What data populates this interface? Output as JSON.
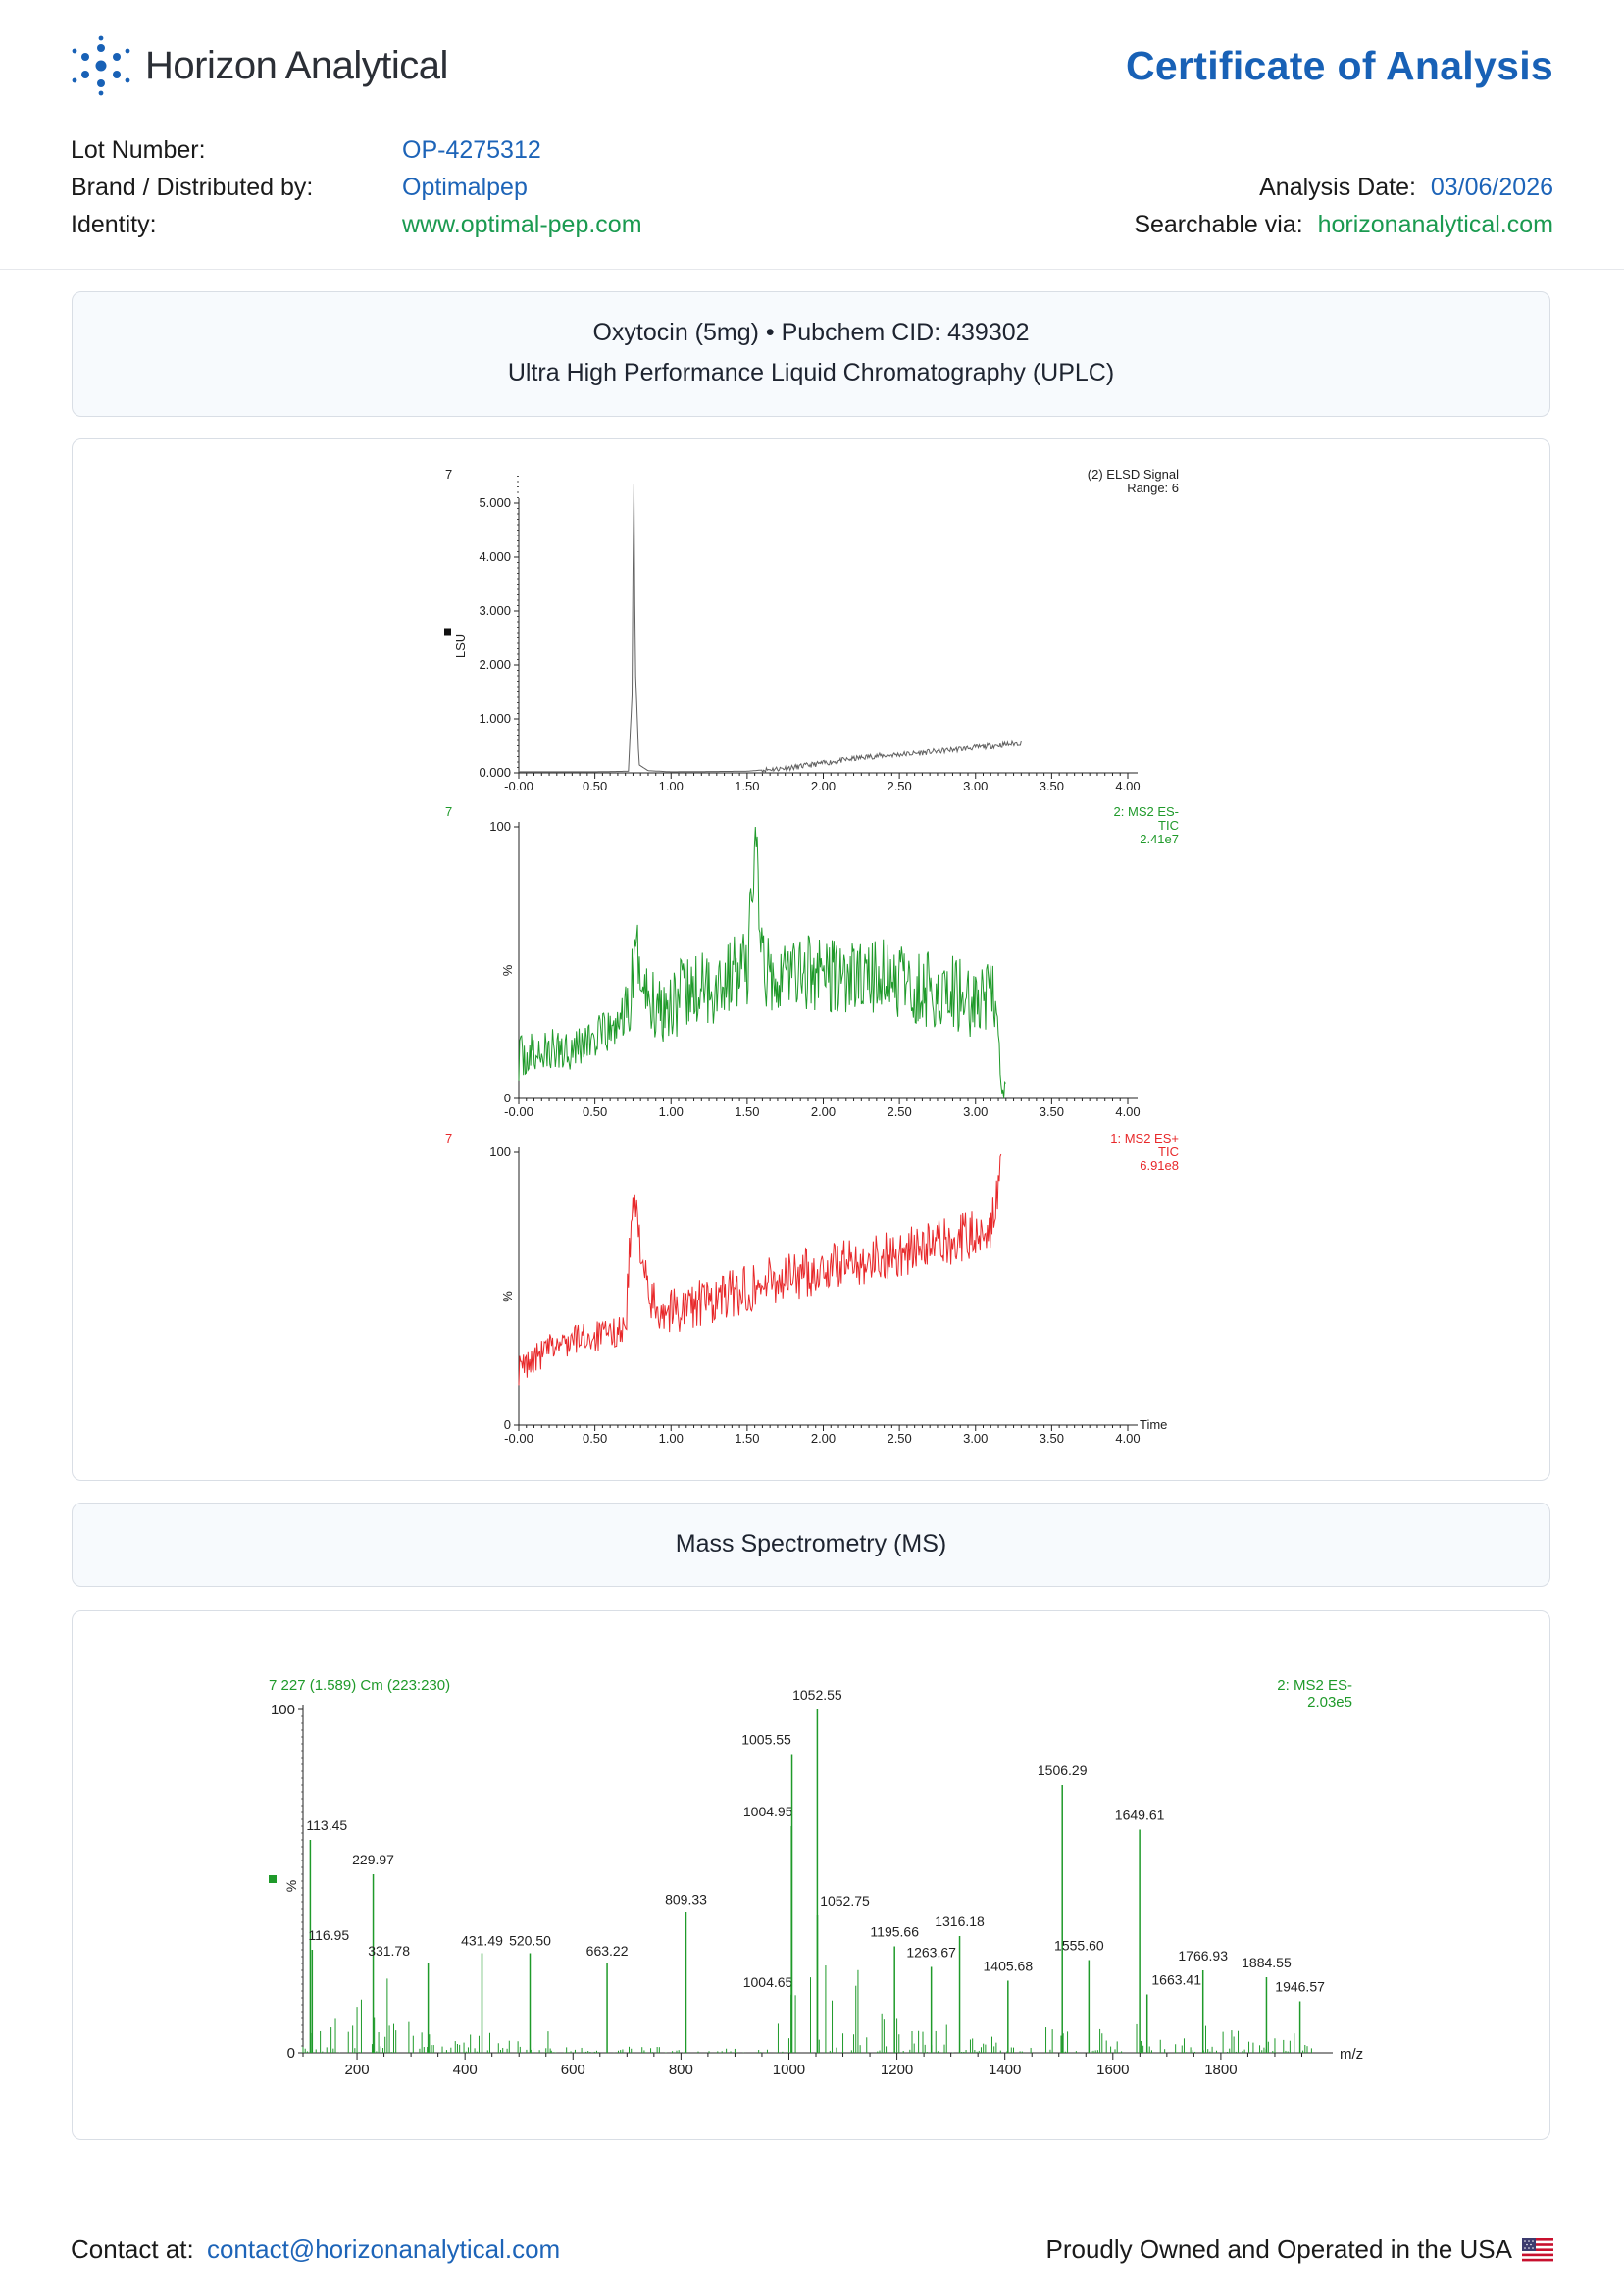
{
  "header": {
    "brand_name": "Horizon Analytical",
    "doc_title": "Certificate of Analysis",
    "lot_label": "Lot Number:",
    "lot_value": "OP-4275312",
    "brand_label": "Brand / Distributed by:",
    "brand_value": "Optimalpep",
    "identity_label": "Identity:",
    "identity_value": "www.optimal-pep.com",
    "analysis_date_label": "Analysis Date:",
    "analysis_date_value": "03/06/2026",
    "searchable_label": "Searchable via:",
    "searchable_value": "horizonanalytical.com"
  },
  "uplc_section": {
    "line1": "Oxytocin (5mg) • Pubchem CID: 439302",
    "line2": "Ultra High Performance Liquid Chromatography (UPLC)"
  },
  "ms_section": {
    "title": "Mass Spectrometry (MS)"
  },
  "footer": {
    "contact_label": "Contact at:",
    "contact_email": "contact@horizonanalytical.com",
    "usa_text": "Proudly Owned and Operated in the USA"
  },
  "chart_data": [
    {
      "type": "line",
      "trace_number": "7",
      "legend": [
        "(2) ELSD Signal",
        "Range: 6"
      ],
      "ylabel": "LSU",
      "x_ticks": [
        "-0.00",
        "0.50",
        "1.00",
        "1.50",
        "2.00",
        "2.50",
        "3.00",
        "3.50",
        "4.00"
      ],
      "y_ticks": [
        "0.000",
        "1.000",
        "2.000",
        "3.000",
        "4.000",
        "5.000"
      ],
      "xlim": [
        0,
        4.0
      ],
      "ylim": [
        0,
        5.0
      ],
      "color": "#606060",
      "points": [
        [
          0,
          0.02
        ],
        [
          0.5,
          0.02
        ],
        [
          0.72,
          0.03
        ],
        [
          0.745,
          1.5
        ],
        [
          0.755,
          5.72
        ],
        [
          0.765,
          2.0
        ],
        [
          0.79,
          0.15
        ],
        [
          0.85,
          0.04
        ],
        [
          1.0,
          0.02
        ],
        [
          1.5,
          0.03
        ],
        [
          1.8,
          0.1
        ],
        [
          2.0,
          0.18
        ],
        [
          2.3,
          0.3
        ],
        [
          2.6,
          0.36
        ],
        [
          3.0,
          0.47
        ],
        [
          3.3,
          0.55
        ]
      ]
    },
    {
      "type": "line",
      "trace_number": "7",
      "legend": [
        "2: MS2 ES-",
        "TIC",
        "2.41e7"
      ],
      "ylabel": "%",
      "x_ticks": [
        "-0.00",
        "0.50",
        "1.00",
        "1.50",
        "2.00",
        "2.50",
        "3.00",
        "3.50",
        "4.00"
      ],
      "y_ticks": [
        "0",
        "100"
      ],
      "xlim": [
        0,
        4.0
      ],
      "ylim": [
        0,
        100
      ],
      "color": "#1f9a2a",
      "points": [
        [
          0,
          15
        ],
        [
          0.2,
          17
        ],
        [
          0.4,
          20
        ],
        [
          0.6,
          24
        ],
        [
          0.72,
          32
        ],
        [
          0.78,
          55
        ],
        [
          0.82,
          40
        ],
        [
          0.9,
          34
        ],
        [
          1.1,
          38
        ],
        [
          1.3,
          42
        ],
        [
          1.4,
          46
        ],
        [
          1.5,
          48
        ],
        [
          1.56,
          100
        ],
        [
          1.6,
          46
        ],
        [
          1.8,
          47
        ],
        [
          2.0,
          46
        ],
        [
          2.2,
          44
        ],
        [
          2.4,
          45
        ],
        [
          2.6,
          40
        ],
        [
          2.8,
          40
        ],
        [
          3.0,
          36
        ],
        [
          3.1,
          36
        ],
        [
          3.15,
          33
        ],
        [
          3.17,
          2
        ],
        [
          3.2,
          1
        ]
      ]
    },
    {
      "type": "line",
      "trace_number": "7",
      "legend": [
        "1: MS2 ES+",
        "TIC",
        "6.91e8"
      ],
      "ylabel": "%",
      "xlabel": "Time",
      "x_ticks": [
        "-0.00",
        "0.50",
        "1.00",
        "1.50",
        "2.00",
        "2.50",
        "3.00",
        "3.50",
        "4.00"
      ],
      "y_ticks": [
        "0",
        "100"
      ],
      "xlim": [
        0,
        4.0
      ],
      "ylim": [
        0,
        100
      ],
      "color": "#e8282a",
      "points": [
        [
          0,
          20
        ],
        [
          0.2,
          28
        ],
        [
          0.4,
          32
        ],
        [
          0.6,
          33
        ],
        [
          0.7,
          36
        ],
        [
          0.75,
          82
        ],
        [
          0.8,
          68
        ],
        [
          0.85,
          45
        ],
        [
          1.0,
          42
        ],
        [
          1.3,
          46
        ],
        [
          1.6,
          52
        ],
        [
          1.9,
          56
        ],
        [
          2.2,
          60
        ],
        [
          2.5,
          63
        ],
        [
          2.8,
          67
        ],
        [
          3.0,
          70
        ],
        [
          3.1,
          74
        ],
        [
          3.15,
          84
        ],
        [
          3.17,
          100
        ]
      ]
    },
    {
      "type": "bar",
      "header_left": "7 227 (1.589) Cm (223:230)",
      "legend": [
        "2: MS2 ES-",
        "2.03e5"
      ],
      "ylabel": "%",
      "xlabel": "m/z",
      "x_ticks": [
        "200",
        "400",
        "600",
        "800",
        "1000",
        "1200",
        "1400",
        "1600",
        "1800"
      ],
      "y_ticks": [
        "0",
        "100"
      ],
      "xlim": [
        100,
        1980
      ],
      "ylim": [
        0,
        100
      ],
      "color": "#1f9a2a",
      "peaks": [
        {
          "mz": 113.45,
          "intensity": 62,
          "label": "113.45"
        },
        {
          "mz": 116.95,
          "intensity": 30,
          "label": "116.95"
        },
        {
          "mz": 229.97,
          "intensity": 52,
          "label": "229.97"
        },
        {
          "mz": 331.78,
          "intensity": 26,
          "label": "331.78"
        },
        {
          "mz": 431.49,
          "intensity": 29,
          "label": "431.49"
        },
        {
          "mz": 520.5,
          "intensity": 29,
          "label": "520.50"
        },
        {
          "mz": 663.22,
          "intensity": 26,
          "label": "663.22"
        },
        {
          "mz": 809.33,
          "intensity": 41,
          "label": "809.33"
        },
        {
          "mz": 1004.65,
          "intensity": 20,
          "label": "1004.65"
        },
        {
          "mz": 1004.95,
          "intensity": 66,
          "label": "1004.95"
        },
        {
          "mz": 1005.55,
          "intensity": 87,
          "label": "1005.55"
        },
        {
          "mz": 1052.55,
          "intensity": 100,
          "label": "1052.55"
        },
        {
          "mz": 1052.75,
          "intensity": 40,
          "label": "1052.75"
        },
        {
          "mz": 1195.66,
          "intensity": 31,
          "label": "1195.66"
        },
        {
          "mz": 1263.67,
          "intensity": 25,
          "label": "1263.67"
        },
        {
          "mz": 1316.18,
          "intensity": 34,
          "label": "1316.18"
        },
        {
          "mz": 1405.68,
          "intensity": 21,
          "label": "1405.68"
        },
        {
          "mz": 1506.29,
          "intensity": 78,
          "label": "1506.29"
        },
        {
          "mz": 1555.6,
          "intensity": 27,
          "label": "1555.60"
        },
        {
          "mz": 1649.61,
          "intensity": 65,
          "label": "1649.61"
        },
        {
          "mz": 1663.41,
          "intensity": 17,
          "label": "1663.41"
        },
        {
          "mz": 1766.93,
          "intensity": 24,
          "label": "1766.93"
        },
        {
          "mz": 1884.55,
          "intensity": 22,
          "label": "1884.55"
        },
        {
          "mz": 1946.57,
          "intensity": 15,
          "label": "1946.57"
        }
      ]
    }
  ]
}
